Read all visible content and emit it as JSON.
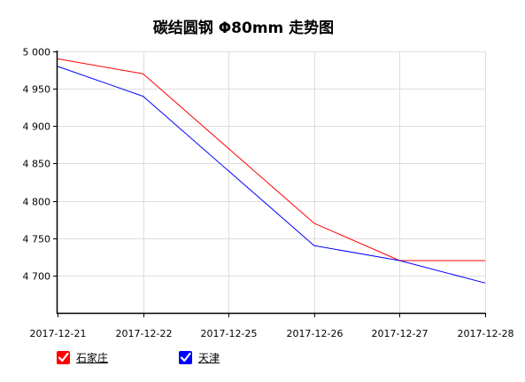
{
  "chart_data": {
    "type": "line",
    "title": "碳结圆钢 Φ80mm 走势图",
    "xlabel": "",
    "ylabel": "",
    "categories": [
      "2017-12-21",
      "2017-12-22",
      "2017-12-25",
      "2017-12-26",
      "2017-12-27",
      "2017-12-28"
    ],
    "y_ticks": [
      "5 000",
      "4 950",
      "4 900",
      "4 850",
      "4 800",
      "4 750",
      "4 700"
    ],
    "y_tick_values": [
      5000,
      4950,
      4900,
      4850,
      4800,
      4750,
      4700
    ],
    "ylim": [
      4650,
      5000
    ],
    "grid": true,
    "legend_position": "bottom-left",
    "series": [
      {
        "name": "石家庄",
        "color": "#ff0000",
        "values": [
          4990,
          4970,
          null,
          4770,
          4720,
          4720
        ]
      },
      {
        "name": "天津",
        "color": "#0000ff",
        "values": [
          4980,
          4940,
          null,
          4740,
          4720,
          4690
        ]
      }
    ]
  }
}
